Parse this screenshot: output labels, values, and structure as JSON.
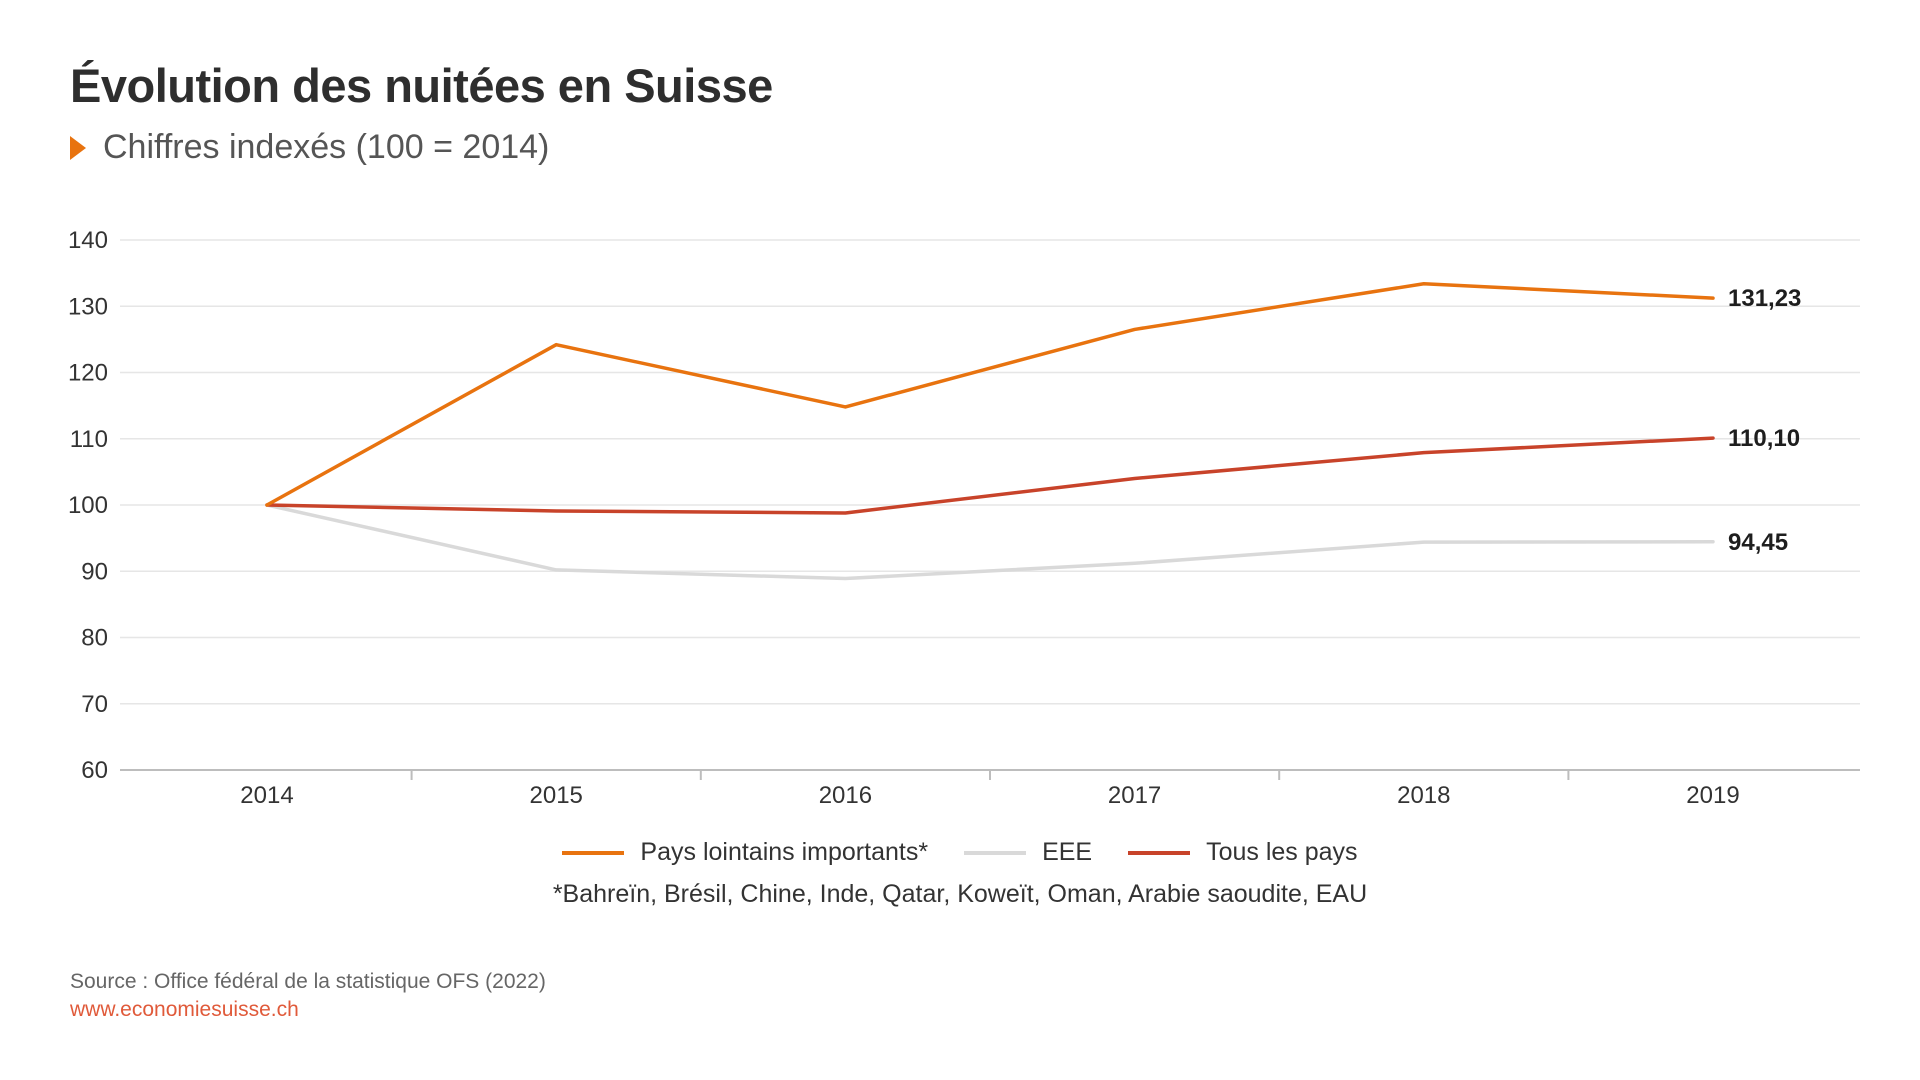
{
  "header": {
    "title": "Évolution des nuitées en Suisse",
    "subtitle": "Chiffres indexés (100 = 2014)"
  },
  "colors": {
    "accent": "#e8730f",
    "grid": "#e6e6e6"
  },
  "chart_data": {
    "type": "line",
    "x": [
      "2014",
      "2015",
      "2016",
      "2017",
      "2018",
      "2019"
    ],
    "ylim": [
      60,
      140
    ],
    "yticks": [
      60,
      70,
      80,
      90,
      100,
      110,
      120,
      130,
      140
    ],
    "grid": true,
    "legend_position": "bottom",
    "series": [
      {
        "name": "EEE",
        "color": "#d9d9d9",
        "values": [
          100,
          90.2,
          88.9,
          91.2,
          94.4,
          94.45
        ],
        "end_label": "94,45"
      },
      {
        "name": "Tous les pays",
        "color": "#c8432a",
        "values": [
          100,
          99.1,
          98.8,
          104,
          107.9,
          110.1
        ],
        "end_label": "110,10"
      },
      {
        "name": "Pays lointains importants*",
        "color": "#e8730f",
        "values": [
          100,
          124.2,
          114.8,
          126.5,
          133.4,
          131.23
        ],
        "end_label": "131,23"
      }
    ],
    "legend_order": [
      "Pays lointains importants*",
      "EEE",
      "Tous les pays"
    ]
  },
  "legend": {
    "items": [
      {
        "label": "Pays lointains importants*",
        "color": "#e8730f"
      },
      {
        "label": "EEE",
        "color": "#d9d9d9"
      },
      {
        "label": "Tous les pays",
        "color": "#c8432a"
      }
    ]
  },
  "footnote": "*Bahreïn, Brésil, Chine, Inde, Qatar, Koweït, Oman, Arabie saoudite, EAU",
  "source": "Source : Office fédéral de la statistique OFS (2022)",
  "website": "www.economiesuisse.ch"
}
